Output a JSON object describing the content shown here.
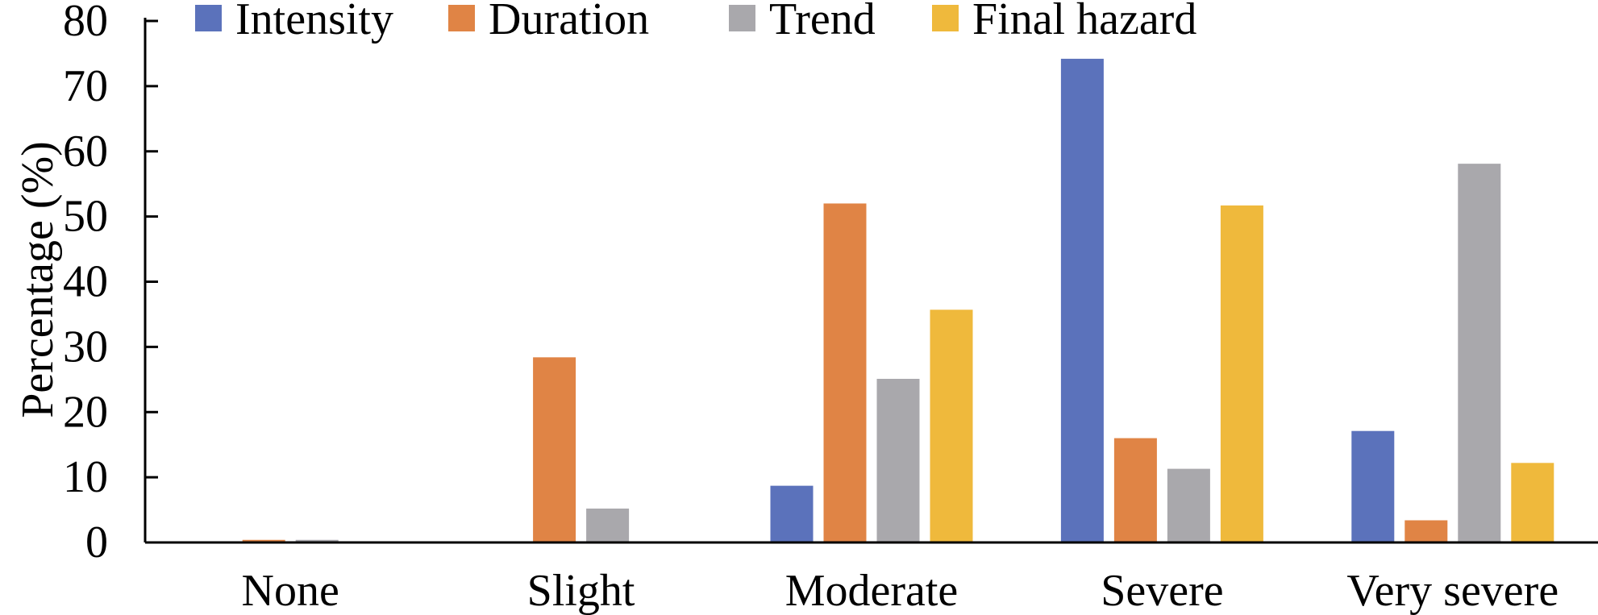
{
  "chart_data": {
    "type": "bar",
    "title": "",
    "xlabel": "",
    "ylabel": "Percentage (%)",
    "ylim": [
      0,
      80
    ],
    "yticks": [
      0,
      10,
      20,
      30,
      40,
      50,
      60,
      70,
      80
    ],
    "grid": false,
    "legend_position": "top",
    "categories": [
      "None",
      "Slight",
      "Moderate",
      "Severe",
      "Very severe"
    ],
    "series": [
      {
        "name": "Intensity",
        "color": "#5b72bb",
        "values": [
          0,
          0,
          8.7,
          74.2,
          17.1
        ]
      },
      {
        "name": "Duration",
        "color": "#e08445",
        "values": [
          0.4,
          28.4,
          52.0,
          16.0,
          3.4
        ]
      },
      {
        "name": "Trend",
        "color": "#a9a8ac",
        "values": [
          0.4,
          5.2,
          25.1,
          11.3,
          58.1
        ]
      },
      {
        "name": "Final hazard",
        "color": "#efb93c",
        "values": [
          0,
          0,
          35.7,
          51.7,
          12.2
        ]
      }
    ]
  }
}
